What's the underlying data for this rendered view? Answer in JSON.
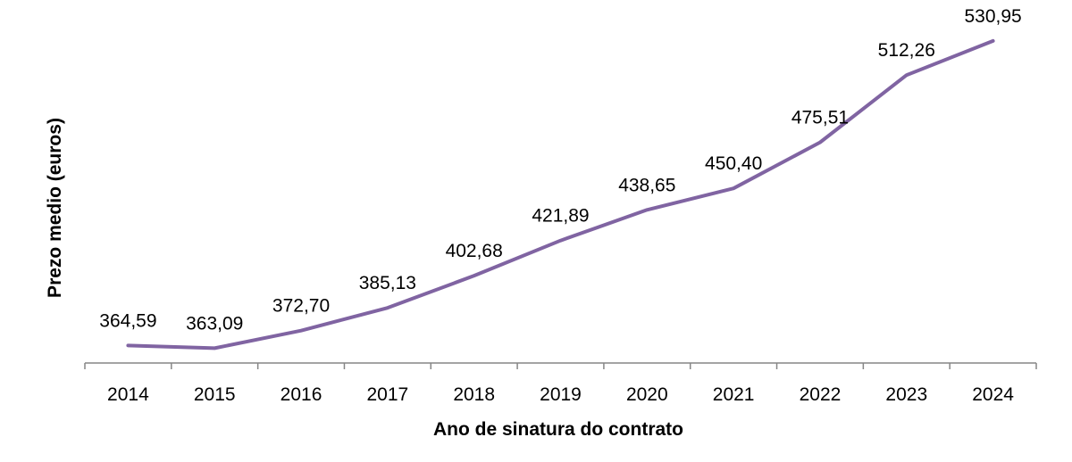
{
  "chart_data": {
    "type": "line",
    "title": "",
    "xlabel": "Ano de sinatura do contrato",
    "ylabel": "Prezo medio (euros)",
    "categories": [
      "2014",
      "2015",
      "2016",
      "2017",
      "2018",
      "2019",
      "2020",
      "2021",
      "2022",
      "2023",
      "2024"
    ],
    "series": [
      {
        "values": [
          364.59,
          363.09,
          372.7,
          385.13,
          402.68,
          421.89,
          438.65,
          450.4,
          475.51,
          512.26,
          530.95
        ],
        "labels": [
          "364,59",
          "363,09",
          "372,70",
          "385,13",
          "402,68",
          "421,89",
          "438,65",
          "450,40",
          "475,51",
          "512,26",
          "530,95"
        ],
        "color": "#8064A2"
      }
    ],
    "ylim": [
      355,
      545
    ],
    "grid": false,
    "legend": "none",
    "axis_color": "#868686"
  }
}
